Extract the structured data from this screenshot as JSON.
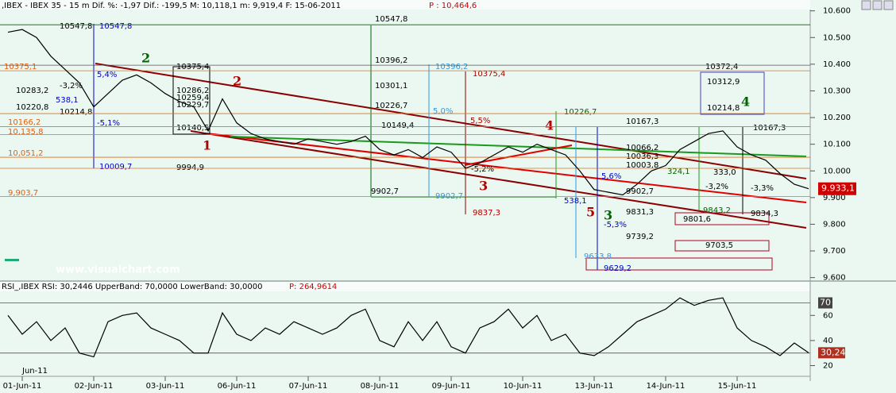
{
  "header": {
    "title": ",IBEX - IBEX 35 -  15 m Dif. %: -1,97 Dif.: -199,5 M: 10,118,1 m: 9,919,4 F: 15-06-2011",
    "price": "P : 10,464,6"
  },
  "watermark": "www.visualchart.com",
  "chart_data": [
    {
      "type": "line",
      "series": [
        {
          "color": "#000000",
          "values": [
            10520,
            10530,
            10500,
            10430,
            10380,
            10330,
            10240,
            10290,
            10340,
            10360,
            10330,
            10290,
            10260,
            10240,
            10150,
            10270,
            10180,
            10140,
            10120,
            10110,
            10100,
            10120,
            10110,
            10100,
            10110,
            10130,
            10080,
            10060,
            10080,
            10050,
            10090,
            10070,
            10010,
            10030,
            10060,
            10090,
            10070,
            10100,
            10080,
            10060,
            10000,
            9930,
            9920,
            9910,
            9950,
            10000,
            10020,
            10080,
            10110,
            10140,
            10150,
            10090,
            10060,
            10040,
            9990,
            9950,
            9933.1
          ]
        }
      ],
      "ylim": [
        9590,
        10602
      ],
      "yticks": [
        {
          "value": 9600,
          "label": "9.600"
        },
        {
          "value": 9700,
          "label": "9.700"
        },
        {
          "value": 9800,
          "label": "9.800"
        },
        {
          "value": 9900,
          "label": "9.900"
        },
        {
          "value": 10000,
          "label": "10.000"
        },
        {
          "value": 10100,
          "label": "10.100"
        },
        {
          "value": 10200,
          "label": "10.200"
        },
        {
          "value": 10300,
          "label": "10.300"
        },
        {
          "value": 10400,
          "label": "10.400"
        },
        {
          "value": 10500,
          "label": "10.500"
        },
        {
          "value": 10600,
          "label": "10.600"
        }
      ],
      "xticks": [
        {
          "value": 1,
          "label": "01-Jun-11"
        },
        {
          "value": 6,
          "label": "02-Jun-11"
        },
        {
          "value": 11,
          "label": "03-Jun-11"
        },
        {
          "value": 16,
          "label": "06-Jun-11"
        },
        {
          "value": 21,
          "label": "07-Jun-11"
        },
        {
          "value": 26,
          "label": "08-Jun-11"
        },
        {
          "value": 31,
          "label": "09-Jun-11"
        },
        {
          "value": 36,
          "label": "10-Jun-11"
        },
        {
          "value": 41,
          "label": "13-Jun-11"
        },
        {
          "value": 46,
          "label": "14-Jun-11"
        },
        {
          "value": 51,
          "label": "15-Jun-11"
        }
      ],
      "x_period_label": "Jun-11",
      "levels": [
        {
          "value": 10547.8,
          "color": "#006400"
        },
        {
          "value": 10396.2,
          "color": "#555555"
        },
        {
          "value": 10375.4,
          "color": "#e07020"
        },
        {
          "value": 10214.8,
          "color": "#e07020"
        },
        {
          "value": 10166.2,
          "color": "#e07020"
        },
        {
          "value": 10135.8,
          "color": "#e07020"
        },
        {
          "value": 10051.2,
          "color": "#e07020"
        },
        {
          "value": 10009.7,
          "color": "#e07020"
        },
        {
          "value": 9903.7,
          "color": "#e07020"
        }
      ],
      "last_price": {
        "value": 9933.1,
        "label": "9.933,1"
      }
    },
    {
      "type": "line",
      "title": "RSI_,IBEX RSI: 30,2446 UpperBand: 70,0000 LowerBand: 30,0000",
      "title_price": "P: 264,9614",
      "series": [
        {
          "color": "#000000",
          "values": [
            60,
            45,
            55,
            40,
            50,
            30,
            27,
            55,
            60,
            62,
            50,
            45,
            40,
            30,
            30,
            62,
            45,
            40,
            50,
            45,
            55,
            50,
            45,
            50,
            60,
            65,
            40,
            35,
            55,
            40,
            55,
            35,
            30,
            50,
            55,
            65,
            50,
            60,
            40,
            45,
            30,
            28,
            35,
            45,
            55,
            60,
            65,
            74,
            68,
            72,
            74,
            50,
            40,
            35,
            28,
            38,
            30.24
          ]
        }
      ],
      "ylim": [
        14,
        76
      ],
      "yticks": [
        20,
        40,
        60
      ],
      "bands": [
        70,
        30
      ],
      "last_value": {
        "value": 30.24,
        "label": "30,24"
      }
    }
  ],
  "annotations": [
    "10547,8",
    "10396,2",
    "10301,1",
    "10226,7",
    "10149,4",
    "9902,7",
    "10375,4",
    "10286,2",
    "10259,4",
    "10229,7",
    "10140,5",
    "10547,8",
    "10547,8",
    "10375,1",
    "10283,2",
    "10220,8",
    "10214,8",
    "10166,2",
    "10,135,8",
    "10,051,2",
    "10009,7",
    "9994,9",
    "9,903,7",
    "-3,2%",
    "5,4%",
    "-5,1%",
    "538,1",
    "10375,4",
    "5,5%",
    "9837,3",
    "-5,2%",
    "10396,2",
    "5,0%",
    "9902,7",
    "10226,7",
    "10167,3",
    "10066,2",
    "10036,3",
    "10003,8",
    "9902,7",
    "9831,3",
    "9739,2",
    "5,6%",
    "538,1",
    "-5,3%",
    "9633,8",
    "9629,2",
    "10372,4",
    "10312,9",
    "10214,8",
    "10167,3",
    "333,0",
    "324,1",
    "-3,2%",
    "9843,2",
    "9801,6",
    "9834,3",
    "9703,5",
    "-3,3%",
    "1",
    "2",
    "2",
    "3",
    "4",
    "5",
    "3",
    "4"
  ]
}
